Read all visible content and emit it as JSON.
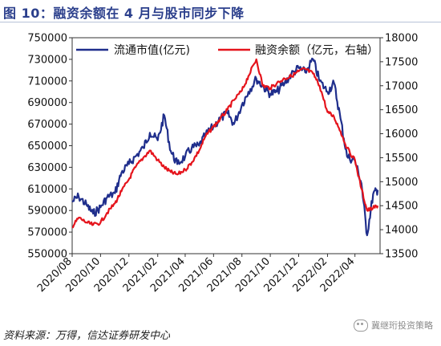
{
  "title": "图 10：融资余额在 4 月与股市同步下降",
  "source": "资料来源：万得，信达证券研发中心",
  "watermark": "冀继珩投资策略",
  "chart_data": {
    "type": "line",
    "title": "图 10：融资余额在 4 月与股市同步下降",
    "legend_position": "top",
    "grid": false,
    "x_ticks": [
      "2020/08",
      "2020/10",
      "2020/12",
      "2021/02",
      "2021/04",
      "2021/06",
      "2021/08",
      "2021/10",
      "2021/12",
      "2022/02",
      "2022/04"
    ],
    "y_left": {
      "ticks": [
        550000,
        570000,
        590000,
        610000,
        630000,
        650000,
        670000,
        690000,
        710000,
        730000,
        750000
      ],
      "range": [
        550000,
        750000
      ]
    },
    "y_right": {
      "ticks": [
        13500,
        14000,
        14500,
        15000,
        15500,
        16000,
        16500,
        17000,
        17500,
        18000
      ],
      "range": [
        13500,
        18000
      ]
    },
    "series": [
      {
        "name": "流通市值(亿元)",
        "axis": "left",
        "color": "#1f2e8c",
        "points": [
          [
            "2020-08-01",
            598000
          ],
          [
            "2020-08-15",
            603000
          ],
          [
            "2020-09-01",
            595000
          ],
          [
            "2020-09-15",
            587000
          ],
          [
            "2020-10-01",
            593000
          ],
          [
            "2020-10-15",
            602000
          ],
          [
            "2020-11-01",
            606000
          ],
          [
            "2020-11-15",
            625000
          ],
          [
            "2020-12-01",
            633000
          ],
          [
            "2020-12-15",
            640000
          ],
          [
            "2021-01-01",
            648000
          ],
          [
            "2021-01-15",
            662000
          ],
          [
            "2021-02-01",
            655000
          ],
          [
            "2021-02-15",
            678000
          ],
          [
            "2021-03-01",
            645000
          ],
          [
            "2021-03-15",
            633000
          ],
          [
            "2021-04-01",
            640000
          ],
          [
            "2021-04-15",
            648000
          ],
          [
            "2021-05-01",
            650000
          ],
          [
            "2021-05-15",
            660000
          ],
          [
            "2021-06-01",
            668000
          ],
          [
            "2021-06-15",
            675000
          ],
          [
            "2021-07-01",
            680000
          ],
          [
            "2021-07-15",
            670000
          ],
          [
            "2021-08-01",
            688000
          ],
          [
            "2021-08-15",
            700000
          ],
          [
            "2021-09-01",
            712000
          ],
          [
            "2021-09-15",
            705000
          ],
          [
            "2021-10-01",
            698000
          ],
          [
            "2021-10-15",
            700000
          ],
          [
            "2021-11-01",
            708000
          ],
          [
            "2021-11-15",
            716000
          ],
          [
            "2021-12-01",
            722000
          ],
          [
            "2021-12-15",
            718000
          ],
          [
            "2022-01-01",
            730000
          ],
          [
            "2022-01-15",
            710000
          ],
          [
            "2022-02-01",
            700000
          ],
          [
            "2022-02-15",
            708000
          ],
          [
            "2022-03-01",
            675000
          ],
          [
            "2022-03-15",
            640000
          ],
          [
            "2022-04-01",
            636000
          ],
          [
            "2022-04-15",
            615000
          ],
          [
            "2022-04-27",
            567000
          ],
          [
            "2022-05-10",
            605000
          ],
          [
            "2022-05-20",
            609000
          ]
        ]
      },
      {
        "name": "融资余额（亿元，右轴）",
        "axis": "right",
        "color": "#e5141c",
        "points": [
          [
            "2020-08-01",
            14050
          ],
          [
            "2020-08-15",
            14250
          ],
          [
            "2020-09-01",
            14150
          ],
          [
            "2020-09-15",
            14100
          ],
          [
            "2020-10-01",
            14150
          ],
          [
            "2020-10-15",
            14350
          ],
          [
            "2020-11-01",
            14550
          ],
          [
            "2020-11-15",
            14800
          ],
          [
            "2020-12-01",
            15050
          ],
          [
            "2020-12-15",
            15300
          ],
          [
            "2021-01-01",
            15500
          ],
          [
            "2021-01-15",
            15650
          ],
          [
            "2021-02-01",
            15450
          ],
          [
            "2021-02-15",
            15300
          ],
          [
            "2021-03-01",
            15200
          ],
          [
            "2021-03-15",
            15150
          ],
          [
            "2021-04-01",
            15250
          ],
          [
            "2021-04-15",
            15400
          ],
          [
            "2021-05-01",
            15650
          ],
          [
            "2021-05-15",
            15950
          ],
          [
            "2021-06-01",
            16150
          ],
          [
            "2021-06-15",
            16300
          ],
          [
            "2021-07-01",
            16500
          ],
          [
            "2021-07-15",
            16700
          ],
          [
            "2021-08-01",
            16900
          ],
          [
            "2021-08-15",
            17200
          ],
          [
            "2021-09-01",
            17550
          ],
          [
            "2021-09-15",
            17000
          ],
          [
            "2021-10-01",
            16950
          ],
          [
            "2021-10-15",
            17050
          ],
          [
            "2021-11-01",
            17150
          ],
          [
            "2021-11-15",
            17200
          ],
          [
            "2021-12-01",
            17300
          ],
          [
            "2021-12-15",
            17350
          ],
          [
            "2022-01-01",
            17250
          ],
          [
            "2022-01-15",
            17000
          ],
          [
            "2022-02-01",
            16450
          ],
          [
            "2022-02-15",
            16350
          ],
          [
            "2022-03-01",
            16050
          ],
          [
            "2022-03-15",
            15700
          ],
          [
            "2022-04-01",
            15450
          ],
          [
            "2022-04-15",
            14850
          ],
          [
            "2022-04-27",
            14400
          ],
          [
            "2022-05-10",
            14450
          ],
          [
            "2022-05-20",
            14500
          ]
        ]
      }
    ]
  }
}
